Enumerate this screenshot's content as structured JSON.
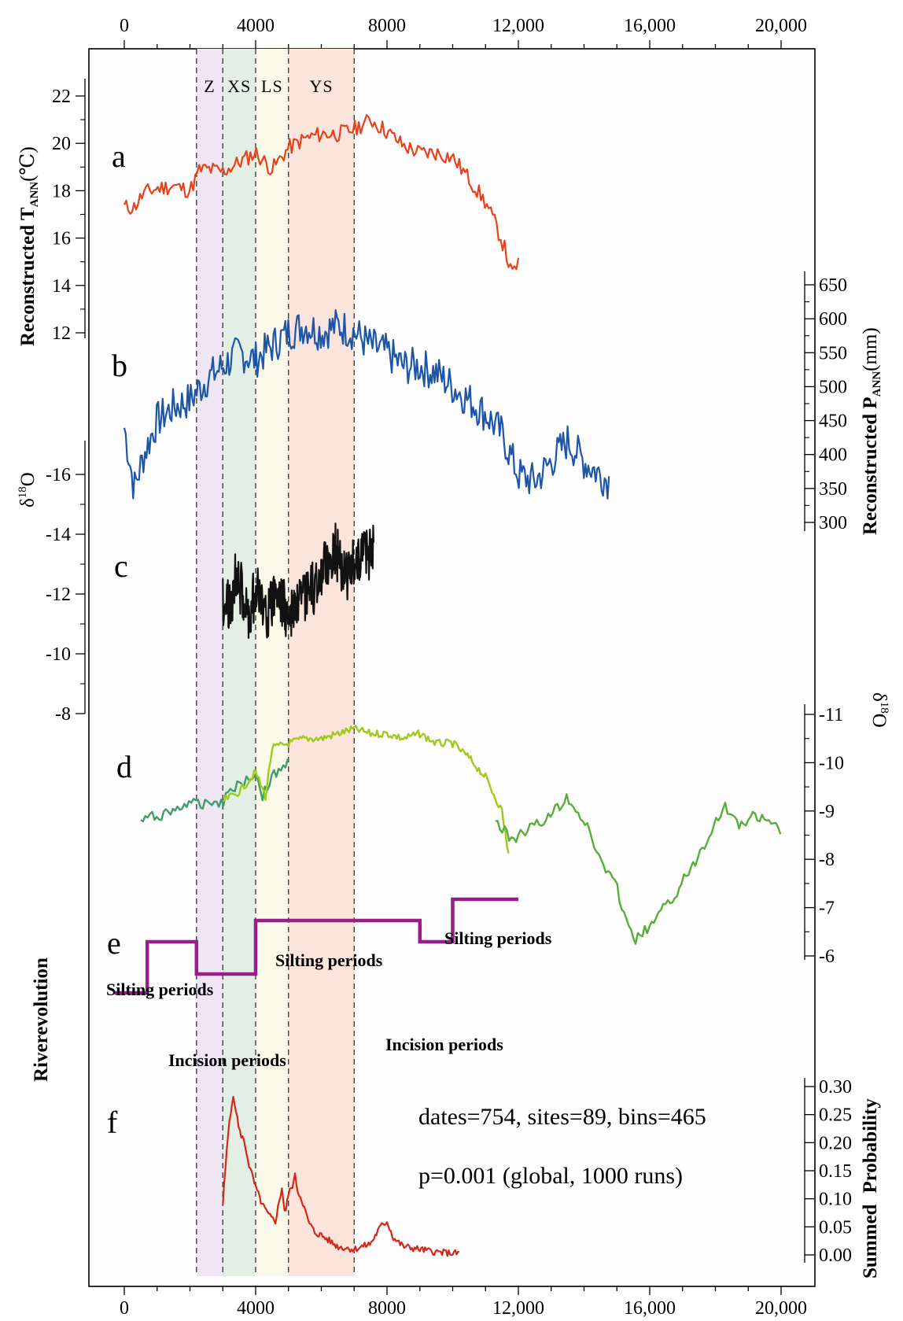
{
  "chart_data": {
    "type": "line",
    "x_axis": {
      "range": [
        0,
        20000
      ],
      "top_ticks": [
        "0",
        "4000",
        "8000",
        "12,000",
        "16,000",
        "20,000"
      ],
      "bottom_ticks": [
        "0",
        "4000",
        "8000",
        "12,000",
        "16,000",
        "20,000"
      ]
    },
    "periods": [
      {
        "label": "Z",
        "start": 2200,
        "end": 3000,
        "color": "#efe6f3"
      },
      {
        "label": "XS",
        "start": 3000,
        "end": 4000,
        "color": "#e3efe5"
      },
      {
        "label": "LS",
        "start": 4000,
        "end": 5000,
        "color": "#fbfaea"
      },
      {
        "label": "YS",
        "start": 5000,
        "end": 7000,
        "color": "#fbe4dc"
      }
    ],
    "panels": {
      "a": {
        "label": "a",
        "title_main": "Reconstructed T",
        "title_sub": "ANN",
        "title_unit": "(℃)",
        "ticks": [
          "22",
          "20",
          "18",
          "16",
          "14",
          "12"
        ],
        "ylim": [
          11,
          23
        ],
        "color": "#e8411c",
        "x": [
          0,
          300,
          600,
          1000,
          1500,
          2000,
          2300,
          2600,
          3000,
          3500,
          4000,
          4500,
          5000,
          5500,
          6000,
          6500,
          7000,
          7500,
          8000,
          8500,
          9000,
          9500,
          10000,
          10500,
          11000,
          11300,
          11600,
          11800,
          12000
        ],
        "y": [
          17.3,
          17.3,
          17.9,
          18.1,
          18.2,
          18.0,
          18.9,
          18.9,
          18.8,
          19.2,
          19.6,
          18.9,
          19.8,
          20.2,
          20.4,
          20.4,
          20.6,
          21.0,
          20.5,
          19.9,
          19.6,
          19.6,
          19.4,
          18.5,
          17.5,
          16.6,
          15.5,
          14.4,
          15.0
        ]
      },
      "b": {
        "label": "b",
        "title_main": "Reconstructed P",
        "title_sub": "ANN",
        "title_unit": "(mm)",
        "ticks": [
          "650",
          "600",
          "550",
          "500",
          "450",
          "400",
          "350",
          "300"
        ],
        "ylim": [
          300,
          650
        ],
        "color": "#1d56a8",
        "x": [
          0,
          300,
          600,
          1000,
          1500,
          2000,
          2500,
          3000,
          3500,
          4000,
          4500,
          5000,
          5500,
          6000,
          6500,
          7000,
          7500,
          8000,
          8500,
          9000,
          9500,
          10000,
          10500,
          11000,
          11500,
          12000,
          12500,
          13000,
          13500,
          14000,
          14500,
          14800
        ],
        "y": [
          440,
          350,
          400,
          450,
          470,
          480,
          510,
          530,
          550,
          540,
          560,
          580,
          590,
          580,
          590,
          580,
          560,
          550,
          530,
          530,
          520,
          500,
          480,
          460,
          430,
          370,
          360,
          390,
          420,
          390,
          370,
          360
        ]
      },
      "c": {
        "label": "c",
        "title_main": "δ",
        "title_sup": "18",
        "title_tail": "O",
        "ticks": [
          "-16",
          "-14",
          "-12",
          "-10",
          "-8"
        ],
        "ylim": [
          -16.5,
          -7.5
        ],
        "color": "#111111",
        "x": [
          3000,
          3200,
          3400,
          3600,
          3800,
          4000,
          4200,
          4400,
          4600,
          4800,
          5000,
          5200,
          5400,
          5600,
          5800,
          6000,
          6200,
          6400,
          6600,
          6800,
          7000,
          7200,
          7400,
          7600
        ],
        "y": [
          -11.8,
          -11.5,
          -12.6,
          -12.0,
          -11.2,
          -12.3,
          -11.7,
          -11.4,
          -12.1,
          -11.8,
          -11.1,
          -11.5,
          -11.6,
          -12.0,
          -12.2,
          -12.6,
          -13.1,
          -13.5,
          -13.0,
          -12.7,
          -13.0,
          -13.4,
          -13.2,
          -13.6
        ]
      },
      "d": {
        "label": "d",
        "title_main": "δ",
        "title_sup": "18",
        "title_tail": "O",
        "ticks": [
          "-11",
          "-10",
          "-9",
          "-8",
          "-7",
          "-6"
        ],
        "ylim": [
          -11,
          -6
        ],
        "color": "#5aad38",
        "series": [
          {
            "name": "d-left",
            "color": "#3f9e6a",
            "x": [
              500,
              1000,
              1500,
              2000,
              2200,
              2500,
              3000,
              3300,
              3600,
              4000,
              4200,
              4500,
              4800,
              5000
            ],
            "y": [
              -8.8,
              -8.9,
              -9.0,
              -9.2,
              -9.1,
              -9.2,
              -9.2,
              -9.5,
              -9.6,
              -9.8,
              -9.3,
              -9.7,
              -9.9,
              -10.0
            ]
          },
          {
            "name": "d-mid",
            "color": "#9fca1c",
            "x": [
              3000,
              3500,
              4000,
              4300,
              4500,
              5000,
              5500,
              6000,
              6500,
              7000,
              7500,
              8000,
              8500,
              9000,
              9500,
              10000,
              10500,
              11000,
              11500,
              11700
            ],
            "y": [
              -9.2,
              -9.4,
              -9.8,
              -9.3,
              -10.3,
              -10.4,
              -10.5,
              -10.5,
              -10.6,
              -10.7,
              -10.6,
              -10.6,
              -10.5,
              -10.6,
              -10.4,
              -10.4,
              -10.1,
              -9.7,
              -9.0,
              -8.1
            ]
          },
          {
            "name": "d-right",
            "color": "#5aad38",
            "x": [
              11300,
              11800,
              12200,
              12800,
              13500,
              14000,
              14500,
              15000,
              15500,
              16000,
              16800,
              17500,
              18000,
              18300,
              18700,
              19200,
              19700,
              20000
            ],
            "y": [
              -8.8,
              -8.4,
              -8.6,
              -8.8,
              -9.3,
              -8.8,
              -8.0,
              -7.4,
              -6.3,
              -6.6,
              -7.3,
              -8.1,
              -8.8,
              -9.1,
              -8.7,
              -8.9,
              -8.7,
              -8.6
            ]
          }
        ]
      },
      "e": {
        "label": "e",
        "title": "Riverevolution",
        "color": "#9a1d8c",
        "steps": [
          {
            "x0": -300,
            "x1": 700,
            "level": 0
          },
          {
            "x0": 700,
            "x1": 2200,
            "level": 2
          },
          {
            "x0": 2200,
            "x1": 4000,
            "level": 1
          },
          {
            "x0": 4000,
            "x1": 9000,
            "level": 3
          },
          {
            "x0": 9000,
            "x1": 10000,
            "level": 2
          },
          {
            "x0": 10000,
            "x1": 12000,
            "level": 4
          }
        ],
        "annotations": [
          "Silting periods",
          "Incision periods",
          "Silting periods",
          "Incision periods",
          "Silting periods"
        ]
      },
      "f": {
        "label": "f",
        "title_main": "Summed",
        "title_tail": "Probability",
        "ticks": [
          "0.30",
          "0.25",
          "0.20",
          "0.15",
          "0.10",
          "0.05",
          "0.00"
        ],
        "ylim": [
          0,
          0.3
        ],
        "color": "#d6261c",
        "stat_line1": "dates=754, sites=89, bins=465",
        "stat_line2": "p=0.001 (global, 1000 runs)",
        "x": [
          3000,
          3100,
          3200,
          3300,
          3400,
          3500,
          3600,
          3700,
          3800,
          4000,
          4200,
          4400,
          4600,
          4800,
          4900,
          5000,
          5100,
          5200,
          5300,
          5400,
          5600,
          5800,
          6000,
          6500,
          7000,
          7500,
          7800,
          8000,
          8200,
          8500,
          9000,
          9500,
          10000,
          10200
        ],
        "y": [
          0.09,
          0.17,
          0.24,
          0.28,
          0.26,
          0.22,
          0.21,
          0.19,
          0.16,
          0.12,
          0.09,
          0.07,
          0.06,
          0.12,
          0.07,
          0.11,
          0.12,
          0.14,
          0.11,
          0.1,
          0.06,
          0.04,
          0.035,
          0.015,
          0.01,
          0.02,
          0.05,
          0.06,
          0.03,
          0.015,
          0.01,
          0.005,
          0.003,
          0.003
        ]
      }
    }
  }
}
